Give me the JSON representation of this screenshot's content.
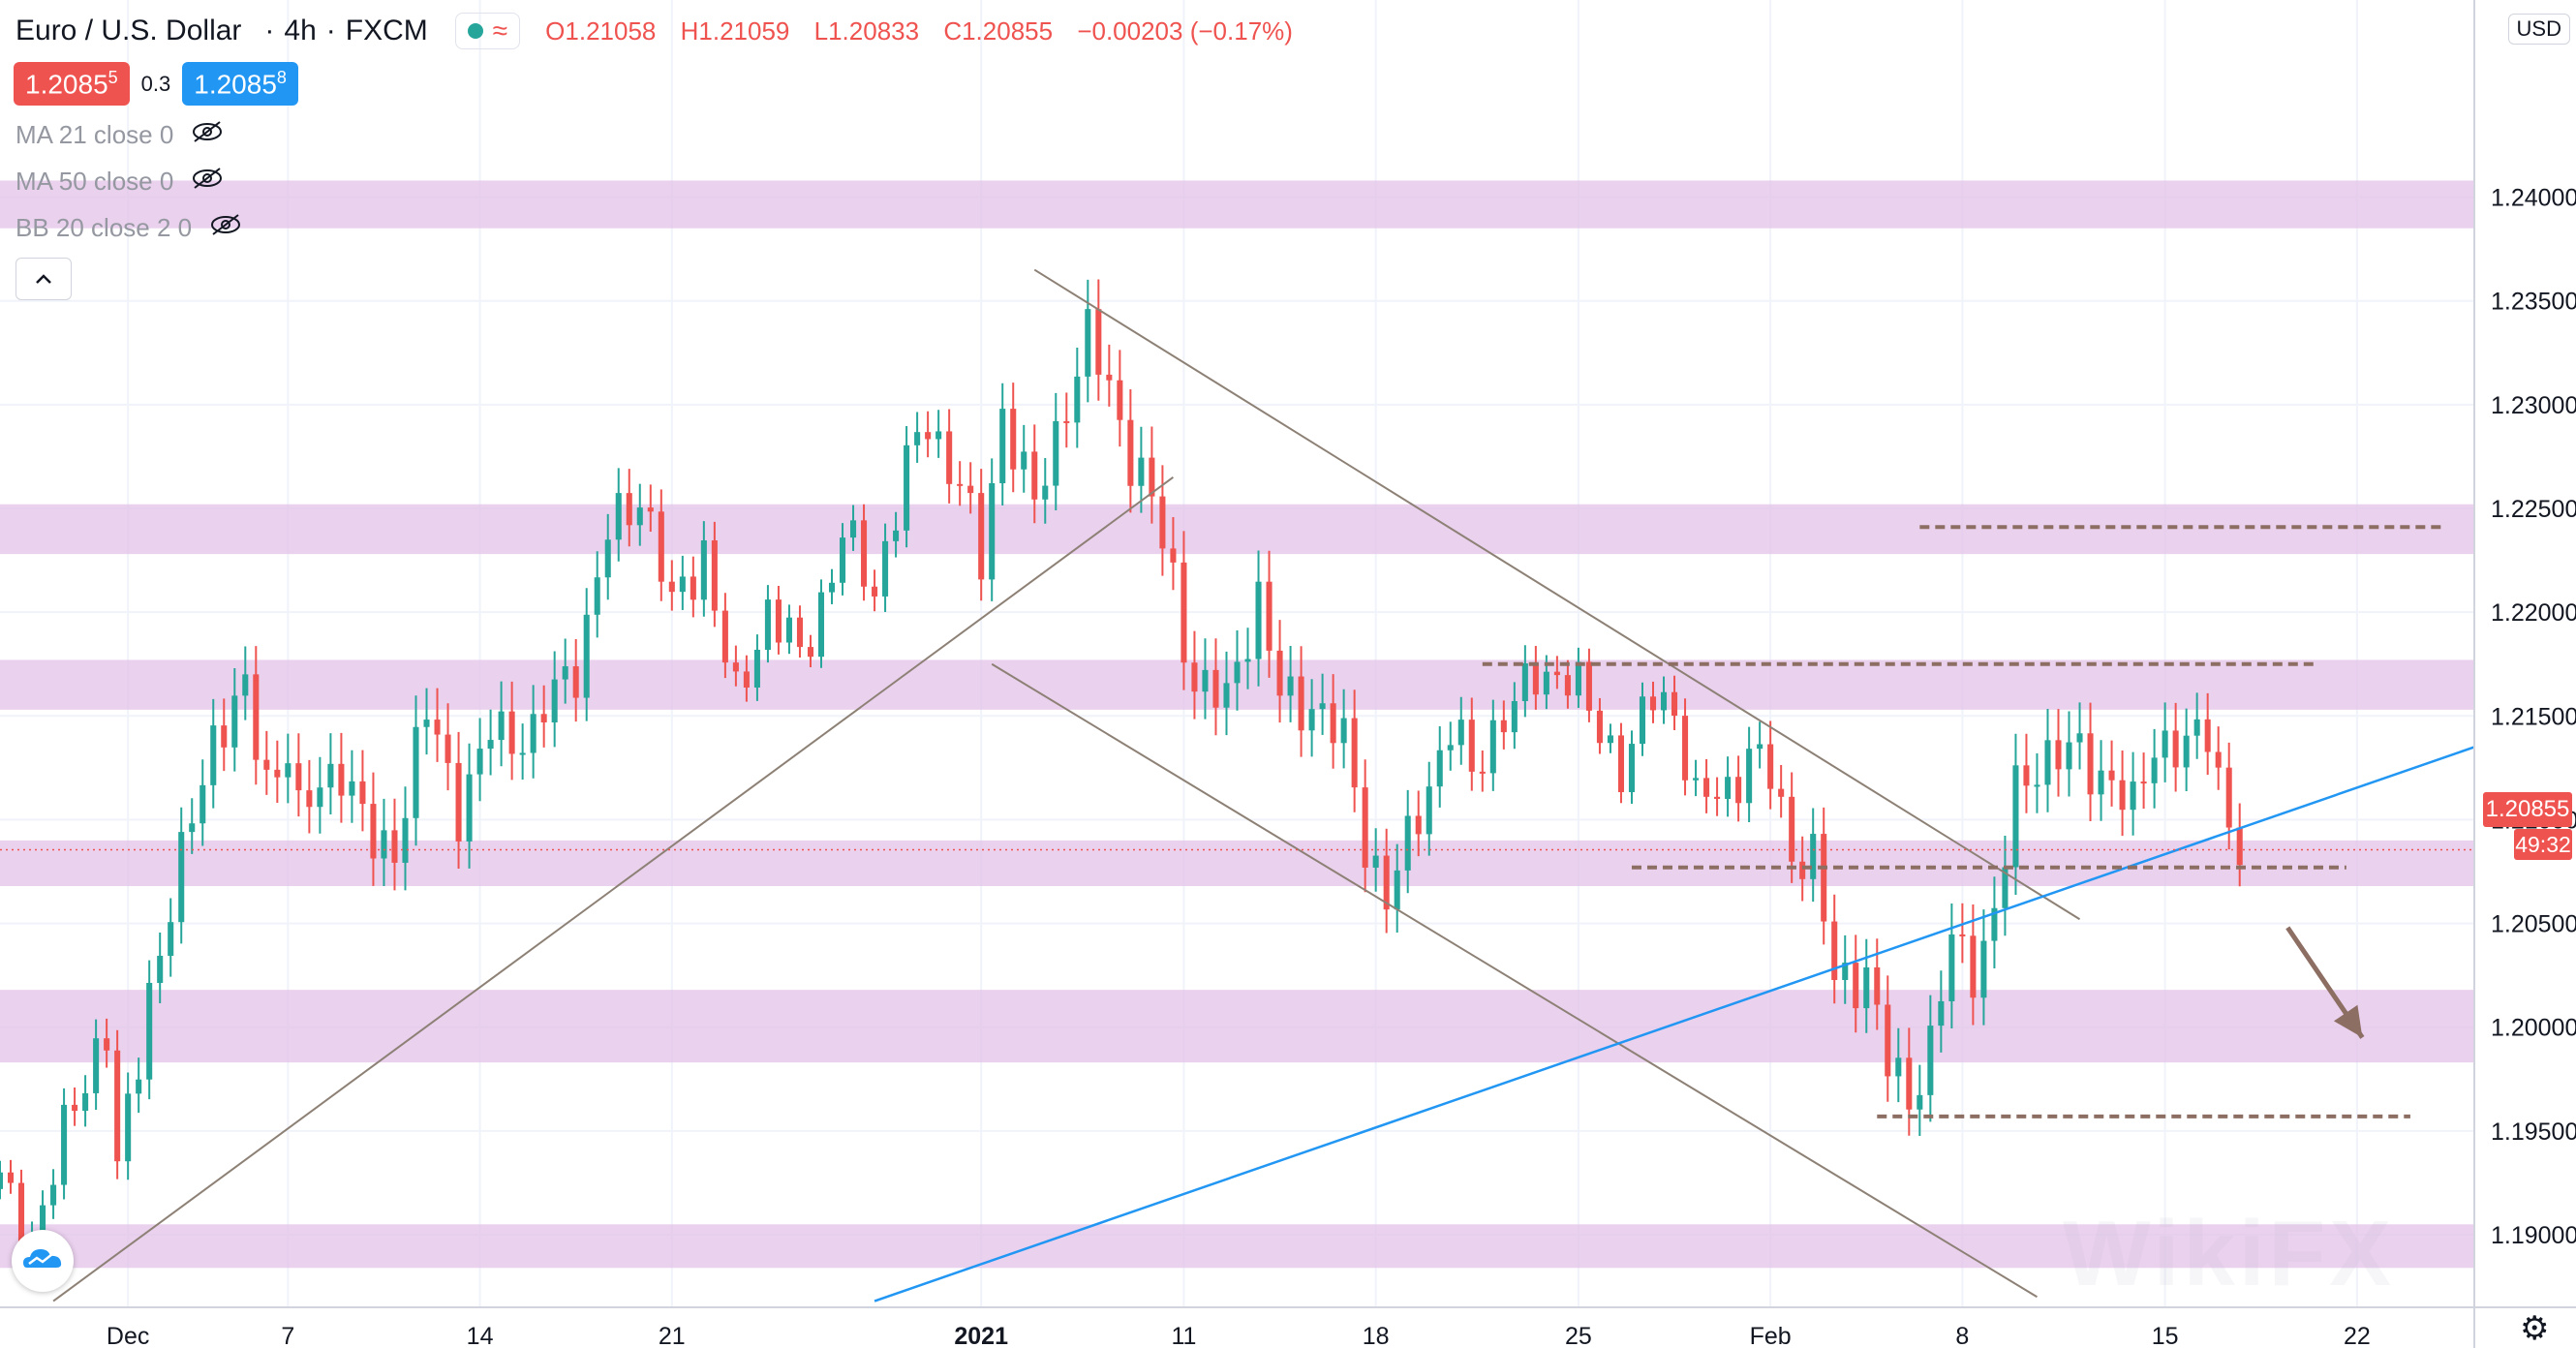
{
  "header": {
    "symbol": "Euro / U.S. Dollar",
    "interval": "4h",
    "exchange": "FXCM",
    "sep": "·",
    "open": "O1.21058",
    "high": "H1.21059",
    "low": "L1.20833",
    "close": "C1.20855",
    "change": "−0.00203 (−0.17%)"
  },
  "quotes": {
    "sell_main": "1.2085",
    "sell_sup": "5",
    "spread": "0.3",
    "buy_main": "1.2085",
    "buy_sup": "8"
  },
  "indicators": [
    {
      "label": "MA 21 close 0"
    },
    {
      "label": "MA 50 close 0"
    },
    {
      "label": "BB 20 close 2 0"
    }
  ],
  "colors": {
    "up": "#26a69a",
    "down": "#ef5350",
    "zone": "#e1bee7",
    "trend_line": "#8d8176",
    "blue_line": "#2196f3",
    "dashed": "#8d6e63",
    "arrow": "#8d6e63"
  },
  "price_axis": {
    "currency": "USD",
    "last_price": "1.20855",
    "countdown": "49:32"
  },
  "chart_data": {
    "type": "candlestick",
    "ylim": [
      1.1865,
      1.2495
    ],
    "xlim": [
      0,
      232
    ],
    "y_ticks": [
      "1.24000",
      "1.23500",
      "1.23000",
      "1.22500",
      "1.22000",
      "1.21500",
      "1.21000",
      "1.20500",
      "1.20000",
      "1.19500",
      "1.19000"
    ],
    "y_tick_values": [
      1.24,
      1.235,
      1.23,
      1.225,
      1.22,
      1.215,
      1.21,
      1.205,
      1.2,
      1.195,
      1.19
    ],
    "x_ticks": [
      {
        "label": "Dec",
        "i": 12,
        "bold": false
      },
      {
        "label": "7",
        "i": 27,
        "bold": false
      },
      {
        "label": "14",
        "i": 45,
        "bold": false
      },
      {
        "label": "21",
        "i": 63,
        "bold": false
      },
      {
        "label": "2021",
        "i": 92,
        "bold": true
      },
      {
        "label": "11",
        "i": 111,
        "bold": false
      },
      {
        "label": "18",
        "i": 129,
        "bold": false
      },
      {
        "label": "25",
        "i": 148,
        "bold": false
      },
      {
        "label": "Feb",
        "i": 166,
        "bold": false
      },
      {
        "label": "8",
        "i": 184,
        "bold": false
      },
      {
        "label": "15",
        "i": 203,
        "bold": false
      },
      {
        "label": "22",
        "i": 221,
        "bold": false
      }
    ],
    "anchors": [
      [
        0,
        1.1925
      ],
      [
        3,
        1.1905
      ],
      [
        6,
        1.1945
      ],
      [
        10,
        1.1995
      ],
      [
        11,
        1.193
      ],
      [
        14,
        1.2025
      ],
      [
        17,
        1.2075
      ],
      [
        20,
        1.2135
      ],
      [
        23,
        1.2165
      ],
      [
        25,
        1.2125
      ],
      [
        27,
        1.2135
      ],
      [
        28,
        1.2095
      ],
      [
        32,
        1.2125
      ],
      [
        35,
        1.2095
      ],
      [
        37,
        1.209
      ],
      [
        40,
        1.2145
      ],
      [
        43,
        1.2105
      ],
      [
        46,
        1.215
      ],
      [
        50,
        1.2135
      ],
      [
        54,
        1.2175
      ],
      [
        57,
        1.2245
      ],
      [
        60,
        1.2255
      ],
      [
        63,
        1.2195
      ],
      [
        66,
        1.2235
      ],
      [
        69,
        1.216
      ],
      [
        72,
        1.2195
      ],
      [
        75,
        1.2175
      ],
      [
        79,
        1.2245
      ],
      [
        82,
        1.2205
      ],
      [
        85,
        1.2265
      ],
      [
        87,
        1.2295
      ],
      [
        90,
        1.227
      ],
      [
        92,
        1.222
      ],
      [
        94,
        1.229
      ],
      [
        97,
        1.225
      ],
      [
        100,
        1.231
      ],
      [
        102,
        1.2335
      ],
      [
        104,
        1.23
      ],
      [
        106,
        1.227
      ],
      [
        108,
        1.2255
      ],
      [
        110,
        1.222
      ],
      [
        112,
        1.217
      ],
      [
        115,
        1.215
      ],
      [
        118,
        1.2205
      ],
      [
        120,
        1.2165
      ],
      [
        123,
        1.216
      ],
      [
        126,
        1.213
      ],
      [
        128,
        1.2085
      ],
      [
        130,
        1.2065
      ],
      [
        133,
        1.211
      ],
      [
        136,
        1.214
      ],
      [
        138,
        1.2115
      ],
      [
        141,
        1.2155
      ],
      [
        144,
        1.2175
      ],
      [
        147,
        1.2165
      ],
      [
        149,
        1.2145
      ],
      [
        152,
        1.213
      ],
      [
        155,
        1.2165
      ],
      [
        157,
        1.215
      ],
      [
        159,
        1.21
      ],
      [
        162,
        1.2115
      ],
      [
        164,
        1.214
      ],
      [
        166,
        1.2125
      ],
      [
        168,
        1.208
      ],
      [
        170,
        1.2075
      ],
      [
        172,
        1.202
      ],
      [
        175,
        1.2035
      ],
      [
        177,
        1.1985
      ],
      [
        179,
        1.196
      ],
      [
        181,
        1.1985
      ],
      [
        183,
        1.204
      ],
      [
        185,
        1.2035
      ],
      [
        187,
        1.206
      ],
      [
        189,
        1.211
      ],
      [
        192,
        1.2125
      ],
      [
        195,
        1.2135
      ],
      [
        198,
        1.2125
      ],
      [
        200,
        1.21
      ],
      [
        202,
        1.213
      ],
      [
        205,
        1.2135
      ],
      [
        207,
        1.215
      ],
      [
        209,
        1.2105
      ],
      [
        210,
        1.2086
      ]
    ],
    "zones": [
      [
        1.2385,
        1.2408
      ],
      [
        1.2228,
        1.2252
      ],
      [
        1.2153,
        1.2177
      ],
      [
        1.2068,
        1.209
      ],
      [
        1.1983,
        1.2018
      ],
      [
        1.1884,
        1.1905
      ]
    ],
    "trend_lines": [
      {
        "x1": 5,
        "y1": 1.1868,
        "x2": 110,
        "y2": 1.2265,
        "color": "trend_line"
      },
      {
        "x1": 97,
        "y1": 1.2365,
        "x2": 195,
        "y2": 1.2052,
        "color": "trend_line"
      },
      {
        "x1": 93,
        "y1": 1.2175,
        "x2": 191,
        "y2": 1.187,
        "color": "trend_line"
      },
      {
        "x1": 82,
        "y1": 1.1868,
        "x2": 232,
        "y2": 1.2135,
        "color": "blue_line"
      }
    ],
    "dashed_lines": [
      {
        "x1": 180,
        "x2": 229,
        "y": 1.2241
      },
      {
        "x1": 139,
        "x2": 217,
        "y": 1.2175
      },
      {
        "x1": 153,
        "x2": 220,
        "y": 1.2077
      },
      {
        "x1": 176,
        "x2": 226,
        "y": 1.1957
      }
    ],
    "last_price": 1.20855,
    "arrow": {
      "x1": 214.5,
      "y1": 1.2048,
      "x2": 221.5,
      "y2": 1.1995
    }
  }
}
